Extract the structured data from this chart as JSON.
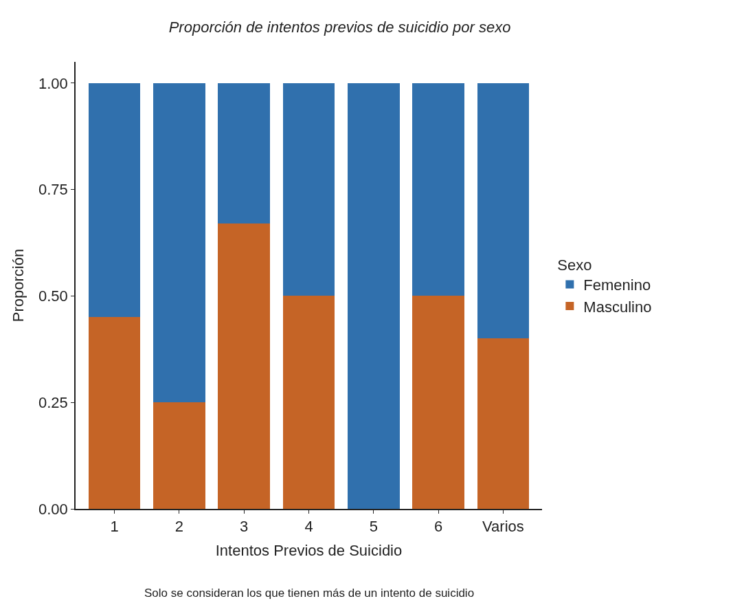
{
  "chart_data": {
    "type": "bar",
    "title": "Proporción de intentos previos de suicidio por sexo",
    "xlabel": "Intentos Previos de Suicidio",
    "ylabel": "Proporción",
    "legend_title": "Sexo",
    "categories": [
      "1",
      "2",
      "3",
      "4",
      "5",
      "6",
      "Varios"
    ],
    "stacked": true,
    "series": [
      {
        "name": "Masculino",
        "color": "#c56426",
        "values": [
          0.45,
          0.25,
          0.67,
          0.5,
          0,
          0.5,
          0.4
        ]
      },
      {
        "name": "Femenino",
        "color": "#3070ad",
        "values": [
          0.55,
          0.75,
          0.33,
          0.5,
          1,
          0.5,
          0.6
        ]
      }
    ],
    "ylim": [
      0,
      1.05
    ],
    "yticks": [
      {
        "value": 0,
        "label": "0.00"
      },
      {
        "value": 0.25,
        "label": "0.25"
      },
      {
        "value": 0.5,
        "label": "0.50"
      },
      {
        "value": 0.75,
        "label": "0.75"
      },
      {
        "value": 1,
        "label": "1.00"
      }
    ],
    "legend": "right",
    "annotations": [
      "Solo se consideran los que tienen más de un intento de suicidio"
    ]
  }
}
